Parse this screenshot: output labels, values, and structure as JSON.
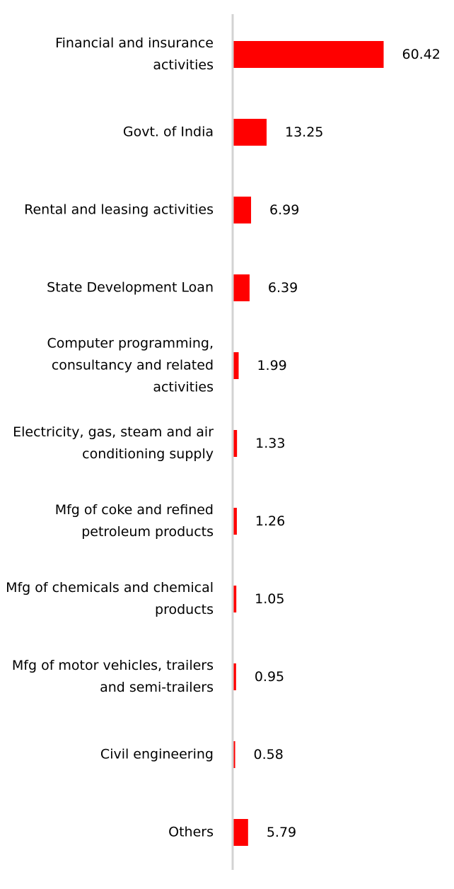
{
  "chart_data": {
    "type": "bar",
    "orientation": "horizontal",
    "categories": [
      "Financial and insurance activities",
      "Govt. of India",
      "Rental and leasing activities",
      "State Development Loan",
      "Computer programming, consultancy and related activities",
      "Electricity, gas, steam and air conditioning supply",
      "Mfg of coke and refined petroleum products",
      "Mfg of chemicals and chemical products",
      "Mfg of motor vehicles, trailers and semi-trailers",
      "Civil engineering",
      "Others"
    ],
    "values": [
      60.42,
      13.25,
      6.99,
      6.39,
      1.99,
      1.33,
      1.26,
      1.05,
      0.95,
      0.58,
      5.79
    ],
    "value_labels": [
      "60.42",
      "13.25",
      "6.99",
      "6.39",
      "1.99",
      "1.33",
      "1.26",
      "1.05",
      "0.95",
      "0.58",
      "5.79"
    ],
    "title": "",
    "xlabel": "",
    "ylabel": "",
    "grid": false,
    "legend": "none",
    "colors": {
      "bar": "#ff0000",
      "axis": "#d3d3d3",
      "text": "#000000"
    }
  }
}
